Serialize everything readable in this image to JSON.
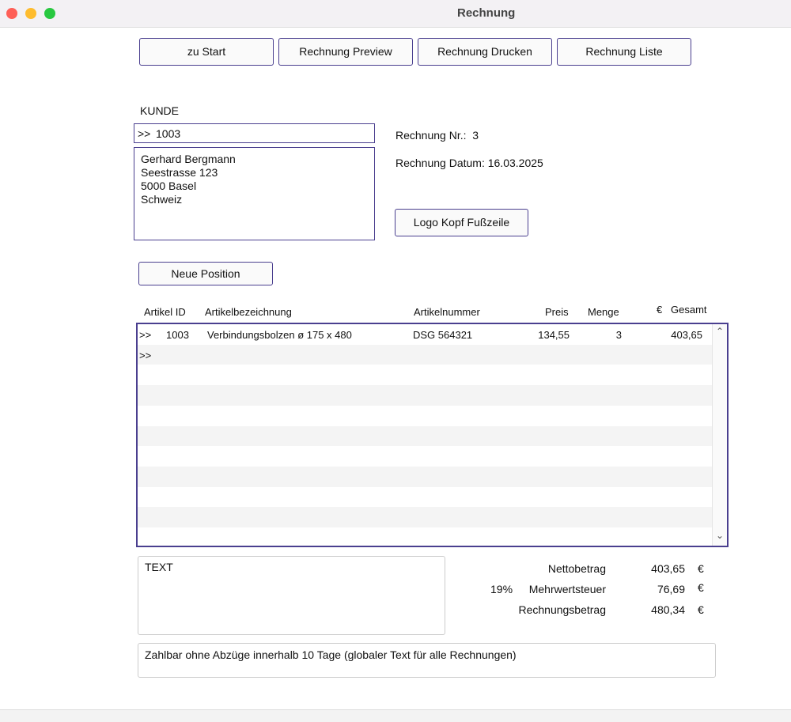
{
  "window": {
    "title": "Rechnung"
  },
  "toolbar": {
    "start": "zu Start",
    "preview": "Rechnung Preview",
    "print": "Rechnung Drucken",
    "list": "Rechnung Liste"
  },
  "customer": {
    "label": "KUNDE",
    "id_prefix": ">>",
    "id": "1003",
    "address": [
      "Gerhard Bergmann",
      "Seestrasse 123",
      "5000 Basel",
      "Schweiz"
    ]
  },
  "invoice": {
    "number_label": "Rechnung Nr.:",
    "number": "3",
    "date_label": "Rechnung Datum:",
    "date": "16.03.2025",
    "logo_button": "Logo Kopf Fußzeile"
  },
  "positions": {
    "new_button": "Neue Position",
    "headers": {
      "id": "Artikel ID",
      "name": "Artikelbezeichnung",
      "number": "Artikelnummer",
      "price": "Preis",
      "qty": "Menge",
      "currency": "€",
      "total": "Gesamt"
    },
    "rows": [
      {
        "marker": ">>",
        "id": "1003",
        "name": "Verbindungsbolzen ø 175 x 480",
        "number": "DSG 564321",
        "price": "134,55",
        "qty": "3",
        "total": "403,65"
      },
      {
        "marker": ">>",
        "id": "",
        "name": "",
        "number": "",
        "price": "",
        "qty": "",
        "total": ""
      }
    ]
  },
  "text_box": {
    "value": "TEXT"
  },
  "totals": {
    "net_label": "Nettobetrag",
    "net": "403,65",
    "vat_rate": "19%",
    "vat_label": "Mehrwertsteuer",
    "vat": "76,69",
    "gross_label": "Rechnungsbetrag",
    "gross": "480,34",
    "currency": "€"
  },
  "footer_text": "Zahlbar ohne Abzüge innerhalb 10 Tage (globaler Text für alle Rechnungen)"
}
